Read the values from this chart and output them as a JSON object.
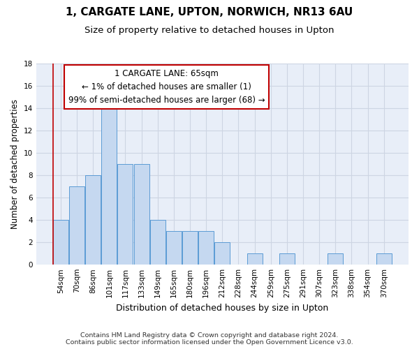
{
  "title": "1, CARGATE LANE, UPTON, NORWICH, NR13 6AU",
  "subtitle": "Size of property relative to detached houses in Upton",
  "xlabel": "Distribution of detached houses by size in Upton",
  "ylabel": "Number of detached properties",
  "categories": [
    "54sqm",
    "70sqm",
    "86sqm",
    "101sqm",
    "117sqm",
    "133sqm",
    "149sqm",
    "165sqm",
    "180sqm",
    "196sqm",
    "212sqm",
    "228sqm",
    "244sqm",
    "259sqm",
    "275sqm",
    "291sqm",
    "307sqm",
    "323sqm",
    "338sqm",
    "354sqm",
    "370sqm"
  ],
  "values": [
    4,
    7,
    8,
    14,
    9,
    9,
    4,
    3,
    3,
    3,
    2,
    0,
    1,
    0,
    1,
    0,
    0,
    1,
    0,
    0,
    1
  ],
  "bar_color": "#c5d8f0",
  "bar_edge_color": "#5b9bd5",
  "highlight_line_color": "#c00000",
  "ylim": [
    0,
    18
  ],
  "yticks": [
    0,
    2,
    4,
    6,
    8,
    10,
    12,
    14,
    16,
    18
  ],
  "annotation_lines": [
    "1 CARGATE LANE: 65sqm",
    "← 1% of detached houses are smaller (1)",
    "99% of semi-detached houses are larger (68) →"
  ],
  "annotation_box_color": "#ffffff",
  "annotation_border_color": "#c00000",
  "grid_color": "#cdd5e3",
  "background_color": "#e8eef8",
  "footer_line1": "Contains HM Land Registry data © Crown copyright and database right 2024.",
  "footer_line2": "Contains public sector information licensed under the Open Government Licence v3.0.",
  "title_fontsize": 11,
  "subtitle_fontsize": 9.5,
  "xlabel_fontsize": 9,
  "ylabel_fontsize": 8.5,
  "tick_fontsize": 7.5,
  "annotation_fontsize": 8.5,
  "footer_fontsize": 6.8
}
